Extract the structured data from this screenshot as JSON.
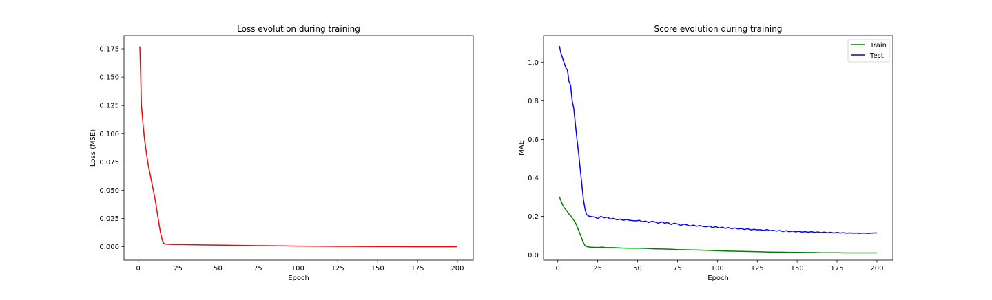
{
  "chart_data": [
    {
      "type": "line",
      "title": "Loss evolution during training",
      "xlabel": "Epoch",
      "ylabel": "Loss (MSE)",
      "xlim": [
        -8.95,
        209.95
      ],
      "ylim": [
        -0.0118,
        0.1866
      ],
      "xticks": [
        0,
        25,
        50,
        75,
        100,
        125,
        150,
        175,
        200
      ],
      "yticks": [
        0.0,
        0.025,
        0.05,
        0.075,
        0.1,
        0.125,
        0.15,
        0.175
      ],
      "xtick_labels": [
        "0",
        "25",
        "50",
        "75",
        "100",
        "125",
        "150",
        "175",
        "200"
      ],
      "ytick_labels": [
        "0.000",
        "0.025",
        "0.050",
        "0.075",
        "0.100",
        "0.125",
        "0.150",
        "0.175"
      ],
      "grid": false,
      "series": [
        {
          "color": "#ff0000",
          "x": [
            1,
            2,
            3,
            4,
            5,
            6,
            7,
            8,
            9,
            10,
            11,
            12,
            13,
            14,
            15,
            16,
            17,
            18,
            19,
            20,
            22,
            25,
            30,
            40,
            50,
            60,
            75,
            90,
            100,
            110,
            125,
            140,
            150,
            160,
            175,
            190,
            200
          ],
          "y": [
            0.177,
            0.125,
            0.108,
            0.094,
            0.084,
            0.074,
            0.067,
            0.06,
            0.053,
            0.046,
            0.038,
            0.029,
            0.02,
            0.012,
            0.006,
            0.003,
            0.0025,
            0.0023,
            0.0022,
            0.0021,
            0.002,
            0.002,
            0.0019,
            0.0017,
            0.0015,
            0.0013,
            0.001,
            0.0008,
            0.0006,
            0.0005,
            0.0004,
            0.0003,
            0.0002,
            0.0002,
            0.0001,
            0.0001,
            0.0001
          ]
        }
      ]
    },
    {
      "type": "line",
      "title": "Score evolution during training",
      "xlabel": "Epoch",
      "ylabel": "MAE",
      "xlim": [
        -8.95,
        209.95
      ],
      "ylim": [
        -0.0265,
        1.1365
      ],
      "xticks": [
        0,
        25,
        50,
        75,
        100,
        125,
        150,
        175,
        200
      ],
      "yticks": [
        0.0,
        0.2,
        0.4,
        0.6,
        0.8,
        1.0
      ],
      "xtick_labels": [
        "0",
        "25",
        "50",
        "75",
        "100",
        "125",
        "150",
        "175",
        "200"
      ],
      "ytick_labels": [
        "0.0",
        "0.2",
        "0.4",
        "0.6",
        "0.8",
        "1.0"
      ],
      "grid": false,
      "legend_position": "top-right",
      "series": [
        {
          "name": "Train",
          "color": "#008000",
          "x": [
            1,
            2,
            3,
            4,
            5,
            6,
            7,
            8,
            9,
            10,
            11,
            12,
            13,
            14,
            15,
            16,
            17,
            18,
            19,
            20,
            22,
            25,
            28,
            30,
            35,
            40,
            45,
            50,
            55,
            60,
            65,
            70,
            75,
            80,
            85,
            90,
            95,
            100,
            105,
            110,
            115,
            120,
            125,
            130,
            135,
            140,
            145,
            150,
            155,
            160,
            165,
            170,
            175,
            180,
            185,
            190,
            195,
            200
          ],
          "y": [
            0.302,
            0.28,
            0.26,
            0.245,
            0.235,
            0.225,
            0.212,
            0.205,
            0.192,
            0.18,
            0.168,
            0.148,
            0.128,
            0.108,
            0.085,
            0.065,
            0.05,
            0.044,
            0.042,
            0.041,
            0.04,
            0.039,
            0.041,
            0.038,
            0.038,
            0.036,
            0.035,
            0.035,
            0.034,
            0.032,
            0.031,
            0.03,
            0.028,
            0.027,
            0.026,
            0.025,
            0.024,
            0.022,
            0.021,
            0.02,
            0.019,
            0.018,
            0.017,
            0.016,
            0.015,
            0.015,
            0.014,
            0.014,
            0.013,
            0.013,
            0.012,
            0.012,
            0.012,
            0.011,
            0.011,
            0.011,
            0.011,
            0.011
          ]
        },
        {
          "name": "Test",
          "color": "#0000ff",
          "x": [
            1,
            2,
            3,
            4,
            5,
            6,
            7,
            8,
            9,
            10,
            11,
            12,
            13,
            14,
            15,
            16,
            17,
            18,
            19,
            20,
            22,
            23,
            24,
            25,
            27,
            29,
            31,
            33,
            35,
            37,
            39,
            41,
            43,
            45,
            47,
            49,
            51,
            53,
            55,
            57,
            59,
            61,
            63,
            65,
            67,
            69,
            71,
            73,
            75,
            77,
            79,
            81,
            83,
            85,
            87,
            89,
            91,
            93,
            95,
            97,
            99,
            101,
            103,
            105,
            107,
            109,
            111,
            113,
            115,
            117,
            119,
            121,
            123,
            125,
            127,
            129,
            131,
            133,
            135,
            137,
            139,
            141,
            143,
            145,
            147,
            149,
            151,
            153,
            155,
            157,
            159,
            161,
            163,
            165,
            167,
            169,
            171,
            173,
            175,
            177,
            179,
            181,
            183,
            185,
            187,
            189,
            191,
            193,
            195,
            197,
            200
          ],
          "y": [
            1.083,
            1.045,
            1.02,
            0.995,
            0.97,
            0.96,
            0.9,
            0.88,
            0.8,
            0.76,
            0.68,
            0.6,
            0.53,
            0.45,
            0.37,
            0.29,
            0.24,
            0.21,
            0.203,
            0.2,
            0.198,
            0.196,
            0.193,
            0.188,
            0.2,
            0.193,
            0.196,
            0.186,
            0.19,
            0.182,
            0.186,
            0.18,
            0.184,
            0.18,
            0.178,
            0.177,
            0.18,
            0.172,
            0.176,
            0.168,
            0.175,
            0.171,
            0.164,
            0.172,
            0.165,
            0.168,
            0.158,
            0.165,
            0.161,
            0.153,
            0.16,
            0.156,
            0.15,
            0.155,
            0.149,
            0.153,
            0.148,
            0.146,
            0.15,
            0.142,
            0.147,
            0.14,
            0.144,
            0.138,
            0.142,
            0.136,
            0.14,
            0.135,
            0.137,
            0.132,
            0.136,
            0.13,
            0.133,
            0.13,
            0.131,
            0.127,
            0.132,
            0.126,
            0.128,
            0.124,
            0.127,
            0.122,
            0.126,
            0.121,
            0.124,
            0.12,
            0.123,
            0.119,
            0.121,
            0.118,
            0.121,
            0.117,
            0.12,
            0.116,
            0.119,
            0.115,
            0.118,
            0.114,
            0.117,
            0.114,
            0.116,
            0.113,
            0.115,
            0.113,
            0.114,
            0.112,
            0.114,
            0.113,
            0.112,
            0.114,
            0.115
          ]
        }
      ]
    }
  ]
}
